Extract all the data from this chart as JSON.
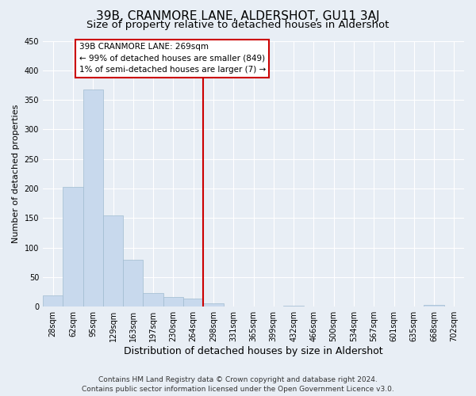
{
  "title": "39B, CRANMORE LANE, ALDERSHOT, GU11 3AJ",
  "subtitle": "Size of property relative to detached houses in Aldershot",
  "xlabel": "Distribution of detached houses by size in Aldershot",
  "ylabel": "Number of detached properties",
  "bin_labels": [
    "28sqm",
    "62sqm",
    "95sqm",
    "129sqm",
    "163sqm",
    "197sqm",
    "230sqm",
    "264sqm",
    "298sqm",
    "331sqm",
    "365sqm",
    "399sqm",
    "432sqm",
    "466sqm",
    "500sqm",
    "534sqm",
    "567sqm",
    "601sqm",
    "635sqm",
    "668sqm",
    "702sqm"
  ],
  "bar_heights": [
    19,
    203,
    367,
    154,
    79,
    23,
    16,
    14,
    5,
    0,
    0,
    0,
    1,
    0,
    0,
    0,
    0,
    0,
    0,
    3,
    0
  ],
  "bar_color": "#c8d9ed",
  "bar_edge_color": "#a0bbcf",
  "vline_x": 7,
  "vline_color": "#cc0000",
  "annotation_title": "39B CRANMORE LANE: 269sqm",
  "annotation_line1": "← 99% of detached houses are smaller (849)",
  "annotation_line2": "1% of semi-detached houses are larger (7) →",
  "annotation_box_color": "#ffffff",
  "annotation_box_edge": "#cc0000",
  "ylim": [
    0,
    450
  ],
  "yticks": [
    0,
    50,
    100,
    150,
    200,
    250,
    300,
    350,
    400,
    450
  ],
  "background_color": "#e8eef5",
  "grid_color": "#ffffff",
  "footer_line1": "Contains HM Land Registry data © Crown copyright and database right 2024.",
  "footer_line2": "Contains public sector information licensed under the Open Government Licence v3.0.",
  "title_fontsize": 11,
  "subtitle_fontsize": 9.5,
  "xlabel_fontsize": 9,
  "ylabel_fontsize": 8,
  "tick_fontsize": 7,
  "annotation_fontsize": 7.5,
  "footer_fontsize": 6.5
}
